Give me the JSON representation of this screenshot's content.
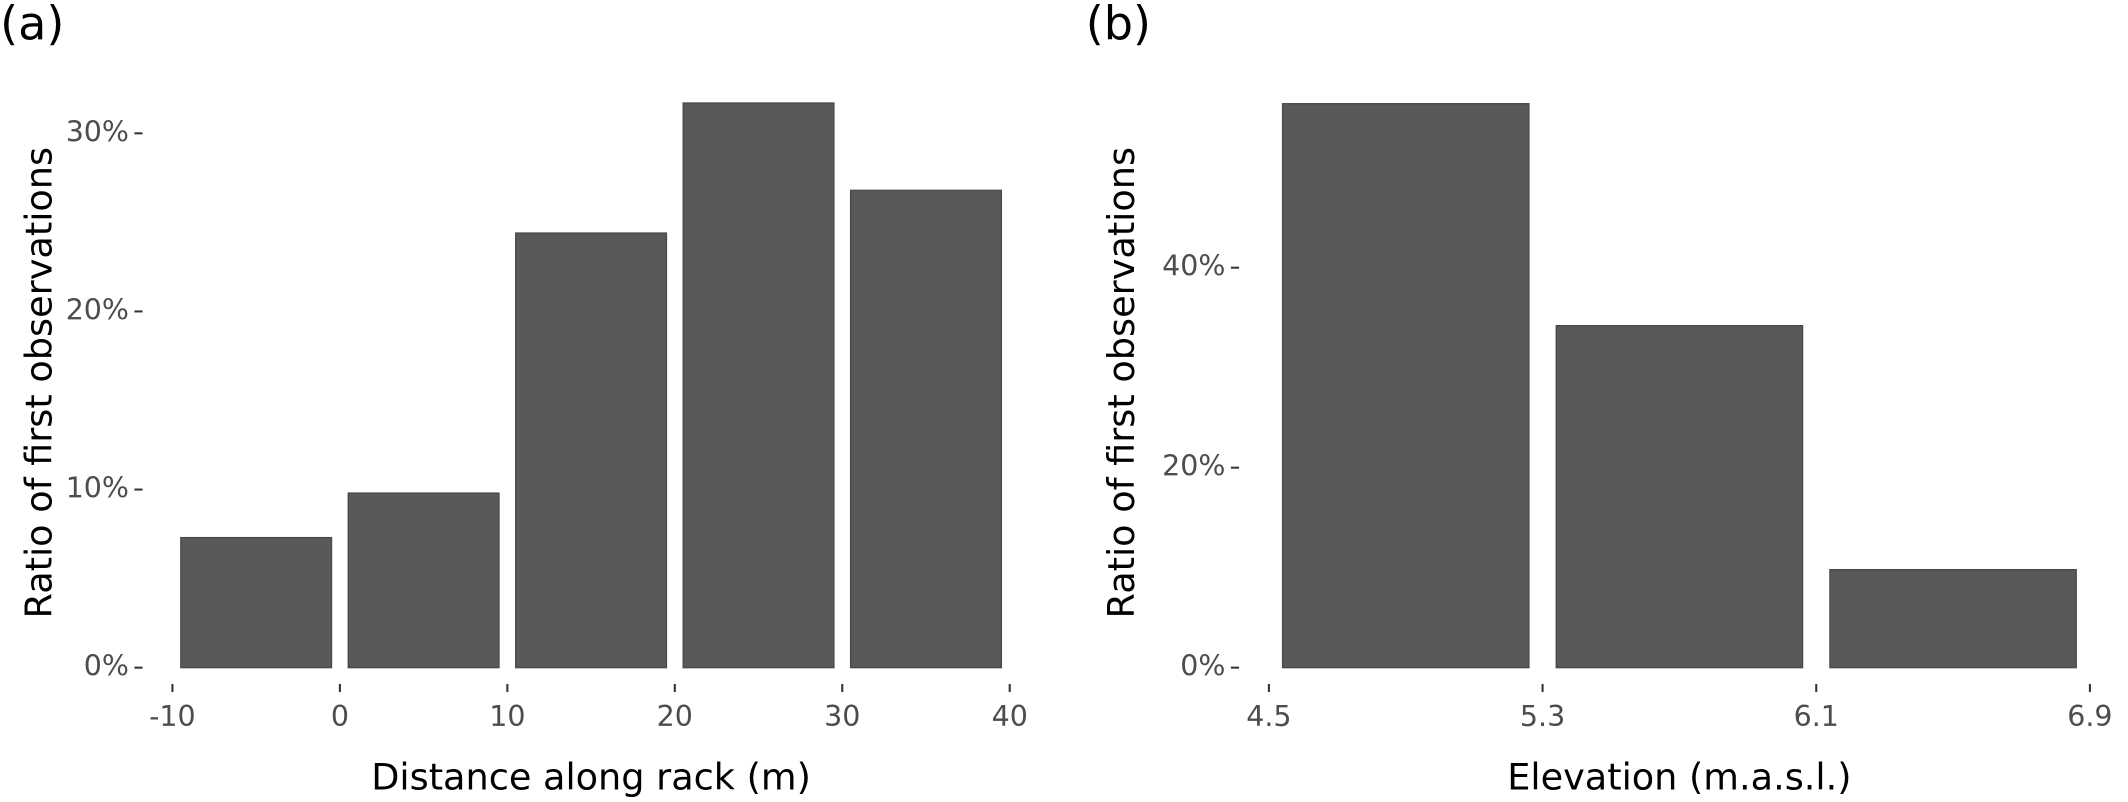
{
  "chart_data": [
    {
      "type": "histogram",
      "panel_label": "(a)",
      "x_label": "Distance along rack (m)",
      "y_label": "Ratio of first observations",
      "bins": [
        -10,
        0,
        10,
        20,
        30,
        40
      ],
      "values": [
        7.3,
        9.8,
        24.4,
        31.7,
        26.8
      ],
      "color": "#595959",
      "xlim": [
        -10,
        40
      ],
      "xticks": [
        -10,
        0,
        10,
        20,
        30,
        40
      ],
      "ylim": [
        0,
        32
      ],
      "yticks": [
        {
          "value": 0,
          "label": "0%"
        },
        {
          "value": 10,
          "label": "10%"
        },
        {
          "value": 20,
          "label": "20%"
        },
        {
          "value": 30,
          "label": "30%"
        }
      ]
    },
    {
      "type": "histogram",
      "panel_label": "(b)",
      "x_label": "Elevation (m.a.s.l.)",
      "y_label": "Ratio of first observations",
      "bins": [
        4.5,
        5.3,
        6.1,
        6.9
      ],
      "values": [
        56.4,
        34.2,
        9.8
      ],
      "color": "#595959",
      "xlim": [
        4.5,
        6.9
      ],
      "xticks": [
        4.5,
        5.3,
        6.1,
        6.9
      ],
      "ylim": [
        0,
        57
      ],
      "yticks": [
        {
          "value": 0,
          "label": "0%"
        },
        {
          "value": 20,
          "label": "20%"
        },
        {
          "value": 40,
          "label": "40%"
        }
      ]
    }
  ]
}
